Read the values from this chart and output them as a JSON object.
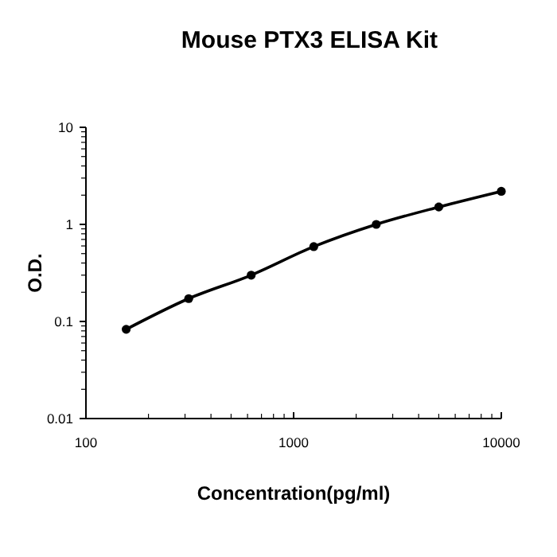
{
  "chart_data": {
    "type": "line",
    "title": "Mouse PTX3 ELISA Kit",
    "xlabel": "Concentration(pg/ml)",
    "ylabel": "O.D.",
    "log": "xy",
    "xlim": [
      100,
      10000
    ],
    "xticks": [
      100,
      1000,
      10000
    ],
    "ylim": [
      0.01,
      10
    ],
    "yticks": [
      0.01,
      0.1,
      1,
      10
    ],
    "marker": "circle",
    "line_style": "solid",
    "grid": false,
    "x": [
      156.25,
      312.5,
      625,
      1250,
      2500,
      5000,
      10000
    ],
    "series": [
      {
        "color": "#000000",
        "values": [
          0.083,
          0.172,
          0.3,
          0.59,
          1.0,
          1.51,
          2.19
        ]
      }
    ]
  }
}
